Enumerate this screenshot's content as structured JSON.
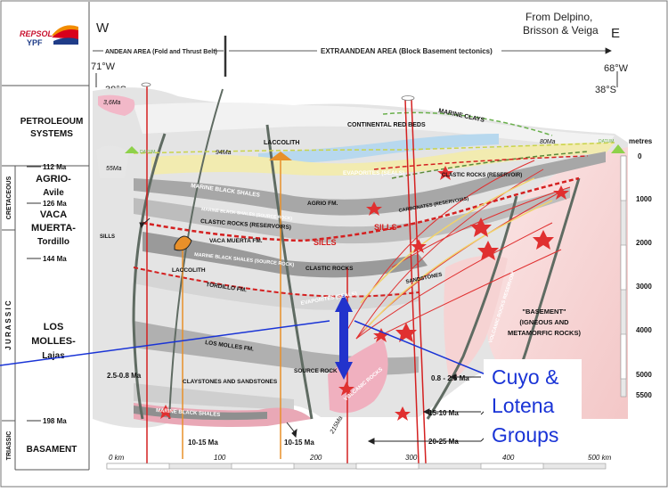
{
  "logo": {
    "brand_top": "REPSOL",
    "brand_bottom": "YPF"
  },
  "header": {
    "west": "W",
    "east": "E",
    "attribution": [
      "From Delpino,",
      "Brisson & Veiga"
    ],
    "andean_area": "ANDEAN AREA (Fold and Thrust Belt)",
    "extraandean_area": "EXTRAANDEAN AREA (Block Basement tectonics)",
    "lon_west": "71°W",
    "lon_east": "68°W",
    "lat_west": "38°S",
    "lat_east": "38°S"
  },
  "left_column": {
    "title": [
      "PETROLEOUM",
      "SYSTEMS"
    ],
    "periods": [
      "CRETACEOUS",
      "J U R A S S I C",
      "TRIASSIC"
    ],
    "ages": [
      "112 Ma",
      "126 Ma",
      "144 Ma",
      "198 Ma"
    ],
    "systems": [
      {
        "lines": [
          "AGRIO-",
          "Avile"
        ]
      },
      {
        "lines": [
          "VACA",
          "MUERTA-",
          "Tordillo"
        ]
      },
      {
        "lines": [
          "LOS",
          "MOLLES-",
          "Lajas"
        ]
      },
      {
        "lines": [
          "BASAMENT"
        ]
      }
    ]
  },
  "depth_scale": {
    "title": "metres",
    "ticks": [
      "0",
      "1000",
      "2000",
      "3000",
      "4000",
      "5000",
      "5500"
    ]
  },
  "distance_scale": {
    "ticks": [
      "0 km",
      "100",
      "200",
      "300",
      "400",
      "500 km"
    ]
  },
  "formations": {
    "continental": "CONTINENTAL RED BEDS",
    "marine_clays": "MARINE CLAYS",
    "evaporites_seals": "EVAPORITES (SEALS)",
    "marine_black_shales": "MARINE BLACK SHALES",
    "marine_black_shales_source": "MARINE BLACK SHALES (SOURCE ROCK)",
    "agrio": "AGRIO FM.",
    "clastic_reservoirs": "CLASTIC ROCKS (RESERVOIRS)",
    "clastic_reservoir": "CLASTIC ROCKS (RESERVOIR)",
    "carbonates": "CARBONATES (RESERVOIRS)",
    "vaca_muerta": "VACA MUERTA FM.",
    "vaca_muerta_source": "MARINE BLACK SHALES (SOURCE ROCK)",
    "clastic_rocks": "CLASTIC ROCKS",
    "tordillo": "TORDILLO FM.",
    "evaporites": "EVAPORITES (SEALS)",
    "los_molles": "LOS MOLLES FM.",
    "claystones": "CLAYSTONES AND SANDSTONES",
    "source_rock": "SOURCE ROCK",
    "volcanic": "VOLCANIC ROCKS",
    "volcanic_reservoir": "VOLCANIC ROCKS RESERVOIR",
    "sandstones": "SANDSTONES",
    "marine_black_shales_base": "MARINE BLACK SHALES",
    "basement": [
      "\"BASEMENT\"",
      "(IGNEOUS AND",
      "METAMORFIC ROCKS)"
    ]
  },
  "features": {
    "laccolith_top": "LACCOLITH",
    "laccolith_left": "LACCOLITH",
    "sills_left": "SILLS",
    "sills_mid": "SILLS",
    "sills_right": "SILLS",
    "datum_left": "DATUM",
    "datum_right": "DATUM"
  },
  "ages_in_section": {
    "a36": "3,6Ma",
    "a55": "55Ma",
    "a94": "94Ma",
    "a80": "80Ma",
    "a215": "215Ma",
    "a2508": "2.5-0.8 Ma",
    "a1015a": "10-15 Ma",
    "a1015b": "10-15 Ma",
    "a0825": "0.8 - 2.5 Ma",
    "a1510": "15-10 Ma",
    "a2025": "20-25 Ma"
  },
  "callout": {
    "lines": [
      "Cuyo &",
      "Lotena",
      "Groups"
    ]
  },
  "colors": {
    "callout_text": "#1a34d6",
    "callout_arrow": "#1a34d6",
    "fault": "#d42020",
    "intrusion": "#e8902a",
    "sill_red": "#e02020",
    "basement_pink": "#f4c9c9",
    "shale_gray": "#9e9e9e",
    "evaporite": "#f2e9a8"
  }
}
